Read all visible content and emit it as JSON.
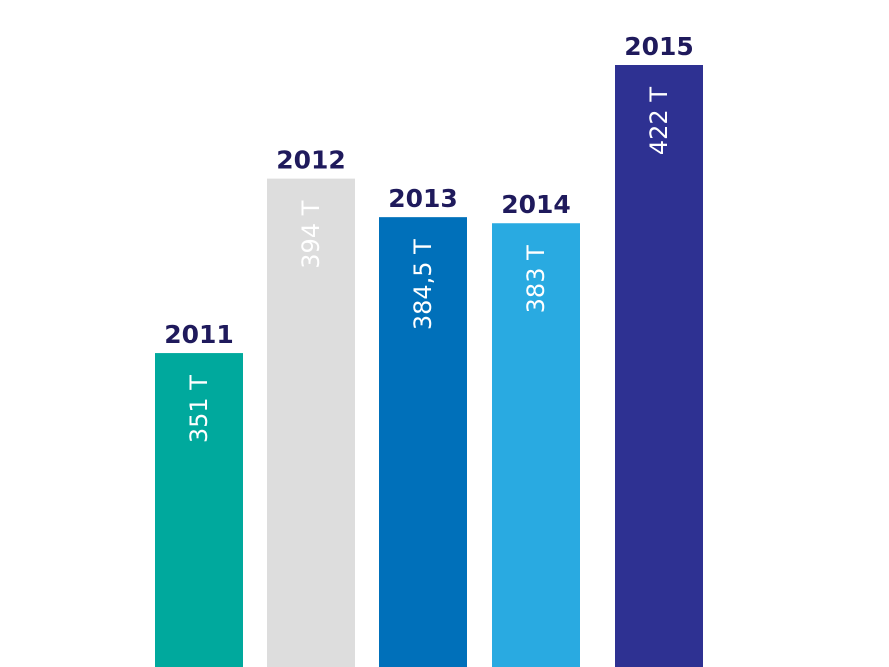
{
  "chart_data": {
    "type": "bar",
    "categories": [
      "2011",
      "2012",
      "2013",
      "2014",
      "2015"
    ],
    "values": [
      351,
      394,
      384.5,
      383,
      422
    ],
    "value_labels": [
      "351 T",
      "394 T",
      "384,5 T",
      "383 T",
      "422 T"
    ],
    "colors": [
      "#00a99d",
      "#dddddd",
      "#0070ba",
      "#29aae1",
      "#2e3192"
    ],
    "value_label_colors": [
      "#ffffff",
      "#ffffff",
      "#ffffff",
      "#ffffff",
      "#ffffff"
    ],
    "ylim": [
      0,
      422
    ],
    "grid": false
  }
}
